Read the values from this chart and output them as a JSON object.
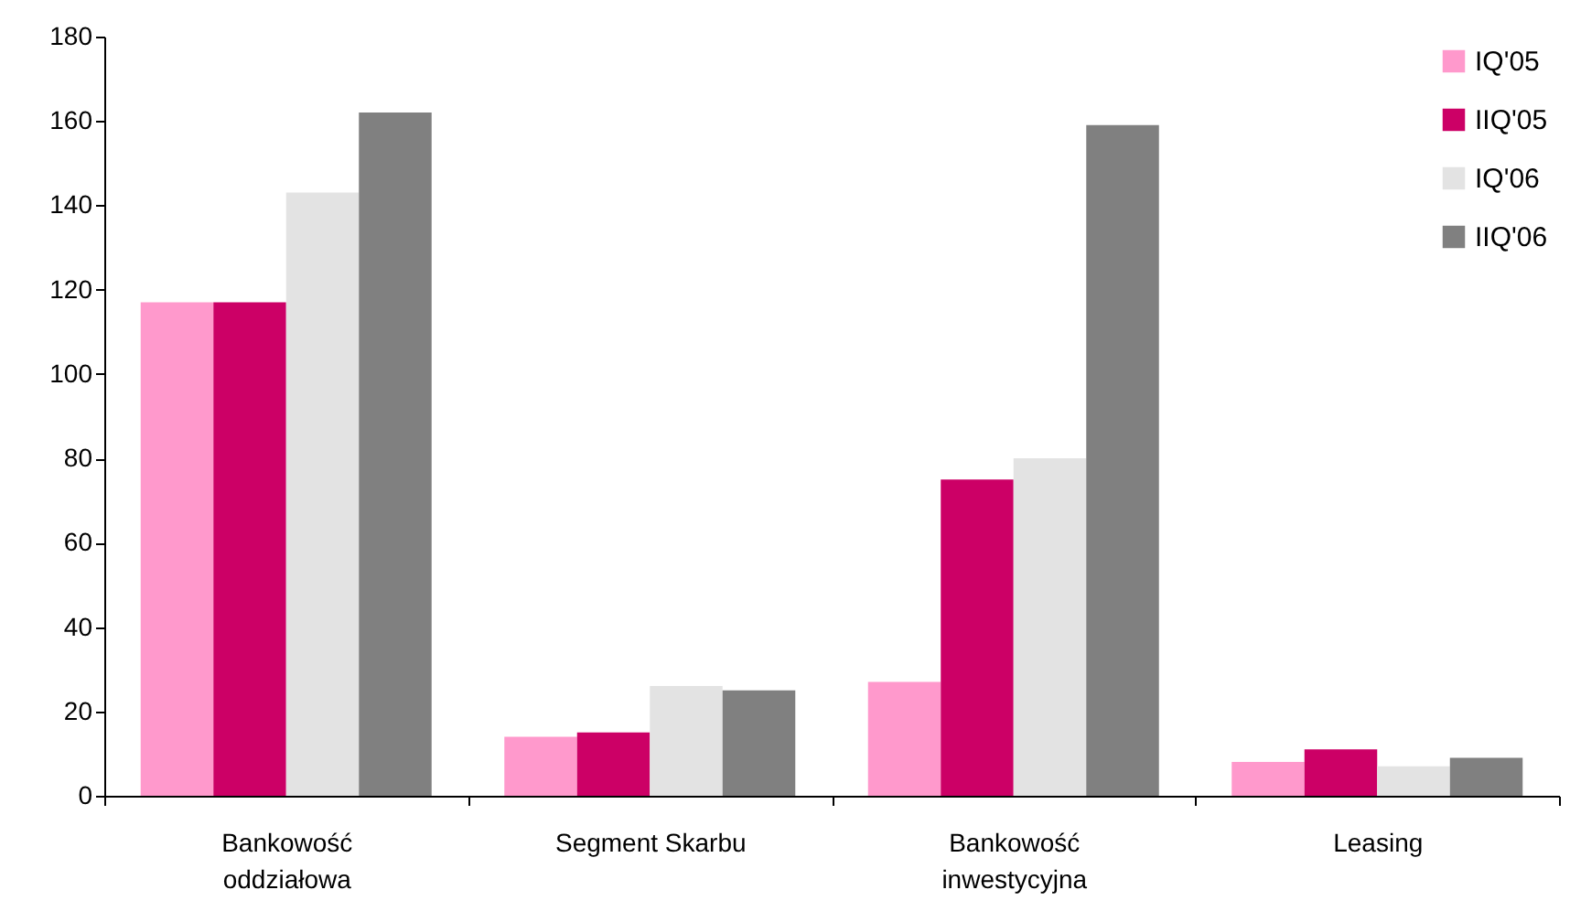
{
  "chart_data": {
    "type": "bar",
    "categories": [
      "Bankowość oddziałowa",
      "Segment Skarbu",
      "Bankowość inwestycyjna",
      "Leasing"
    ],
    "series": [
      {
        "name": "IQ'05",
        "color": "#ff99cc",
        "values": [
          117,
          14,
          27,
          8
        ]
      },
      {
        "name": "IIQ'05",
        "color": "#cc0066",
        "values": [
          117,
          15,
          75,
          11
        ]
      },
      {
        "name": "IQ'06",
        "color": "#e3e3e3",
        "values": [
          143,
          26,
          80,
          7
        ]
      },
      {
        "name": "IIQ'06",
        "color": "#808080",
        "values": [
          162,
          25,
          159,
          9
        ]
      }
    ],
    "ylim": [
      0,
      180
    ],
    "yticks": [
      0,
      20,
      40,
      60,
      80,
      100,
      120,
      140,
      160,
      180
    ],
    "grid": false,
    "legend": "top right"
  }
}
